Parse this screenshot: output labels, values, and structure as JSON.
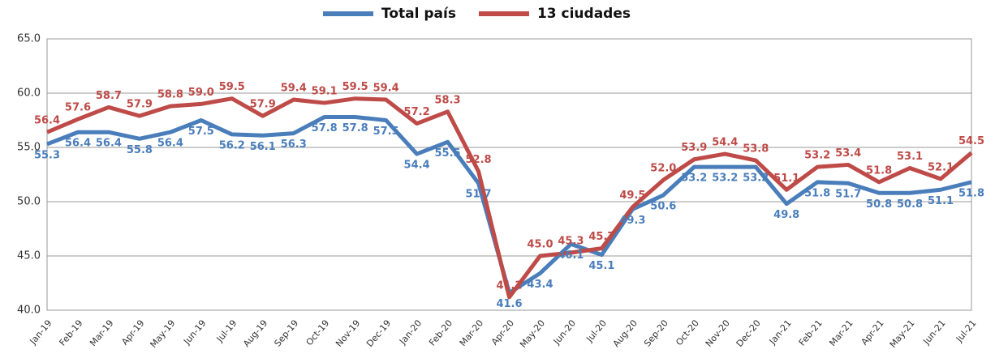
{
  "chart_data": {
    "type": "line",
    "categories": [
      "Jan-19",
      "Feb-19",
      "Mar-19",
      "Apr-19",
      "May-19",
      "Jun-19",
      "Jul-19",
      "Aug-19",
      "Sep-19",
      "Oct-19",
      "Nov-19",
      "Dec-19",
      "Jan-20",
      "Feb-20",
      "Mar-20",
      "Apr-20",
      "May-20",
      "Jun-20",
      "Jul-20",
      "Aug-20",
      "Sep-20",
      "Oct-20",
      "Nov-20",
      "Dec-20",
      "Jan-21",
      "Feb-21",
      "Mar-21",
      "Apr-21",
      "May-21",
      "Jun-21",
      "Jul-21"
    ],
    "series": [
      {
        "name": "Total país",
        "color": "#4a7ebb",
        "values": [
          55.3,
          56.4,
          56.4,
          55.8,
          56.4,
          57.5,
          56.2,
          56.1,
          56.3,
          57.8,
          57.8,
          57.5,
          54.4,
          55.5,
          51.7,
          41.6,
          43.4,
          46.1,
          45.1,
          49.3,
          50.6,
          53.2,
          53.2,
          53.2,
          49.8,
          51.8,
          51.7,
          50.8,
          50.8,
          51.1,
          51.8
        ],
        "value_labels": [
          "55.3",
          "56.4",
          "56.4",
          "55.8",
          "56.4",
          "57.5",
          "56.2",
          "56.1",
          "56.3",
          "57.8",
          "57.8",
          "57.5",
          "54.4",
          "55.5",
          "51.7",
          "41.6",
          "43.4",
          "46.1",
          "45.1",
          "49.3",
          "50.6",
          "53.2",
          "53.2",
          "53.2",
          "49.8",
          "51.8",
          "51.7",
          "50.8",
          "50.8",
          "51.1",
          "51.8"
        ]
      },
      {
        "name": "13 ciudades",
        "color": "#be4b48",
        "values": [
          56.4,
          57.6,
          58.7,
          57.9,
          58.8,
          59.0,
          59.5,
          57.9,
          59.4,
          59.1,
          59.5,
          59.4,
          57.2,
          58.3,
          52.8,
          41.2,
          45.0,
          45.3,
          45.7,
          49.5,
          52.0,
          53.9,
          54.4,
          53.8,
          51.1,
          53.2,
          53.4,
          51.8,
          53.1,
          52.1,
          54.5
        ],
        "value_labels": [
          "56.4",
          "57.6",
          "58.7",
          "57.9",
          "58.8",
          "59.0",
          "59.5",
          "57.9",
          "59.4",
          "59.1",
          "59.5",
          "59.4",
          "57.2",
          "58.3",
          "52.8",
          "41.2",
          "45.0",
          "45.3",
          "45.7",
          "49.5",
          "52.0",
          "53.9",
          "54.4",
          "53.8",
          "51.1",
          "53.2",
          "53.4",
          "51.8",
          "53.1",
          "52.1",
          "54.5"
        ]
      }
    ],
    "ylim": [
      40,
      65
    ],
    "yticks": [
      {
        "value": 40,
        "label": "40.0"
      },
      {
        "value": 45,
        "label": "45.0"
      },
      {
        "value": 50,
        "label": "50.0"
      },
      {
        "value": 55,
        "label": "55.0"
      },
      {
        "value": 60,
        "label": "60.0"
      },
      {
        "value": 65,
        "label": "65.0"
      }
    ],
    "grid": true,
    "legend": "top"
  }
}
